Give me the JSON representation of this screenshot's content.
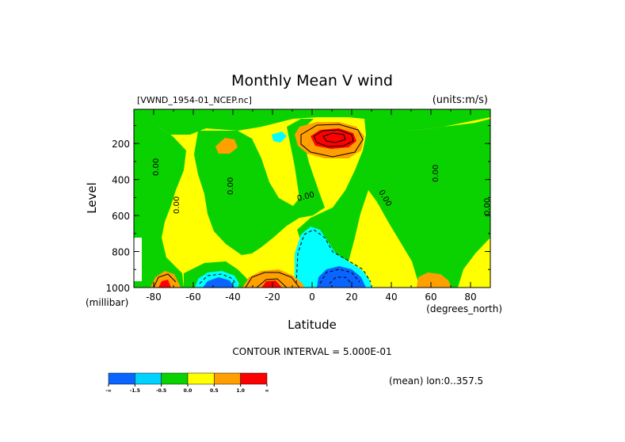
{
  "chart_data": {
    "type": "heatmap",
    "title": "Monthly Mean V wind",
    "dataset_label": "[VWND_1954-01_NCEP.nc]",
    "units_label": "(units:m/s)",
    "xlabel": "Latitude",
    "x_units": "(degrees_north)",
    "ylabel": "Level",
    "y_units": "(millibar)",
    "xlim": [
      -90,
      90
    ],
    "ylim": [
      1000,
      10
    ],
    "x_ticks": [
      -80,
      -60,
      -40,
      -20,
      0,
      20,
      40,
      60,
      80
    ],
    "x_tick_labels": [
      "-80",
      "-60",
      "-40",
      "-20",
      "0",
      "20",
      "40",
      "60",
      "80"
    ],
    "y_ticks": [
      200,
      400,
      600,
      800,
      1000
    ],
    "y_tick_labels": [
      "200",
      "400",
      "600",
      "800",
      "1000"
    ],
    "contour_interval_text": "CONTOUR INTERVAL = 5.000E-01",
    "mean_text": "(mean) lon:0..357.5",
    "zero_contour_label": "0.00",
    "colorbar": {
      "colors": [
        "#0a64ff",
        "#00d2ff",
        "#0ad200",
        "#ffff00",
        "#ffa000",
        "#ff0000"
      ],
      "labels": [
        "-∞",
        "-1.5",
        "-0.5",
        "0.0",
        "0.5",
        "1.0",
        "∞"
      ]
    },
    "features": [
      {
        "lat": -45,
        "lev": 130,
        "value": 0.0,
        "desc": "upper-level green band"
      },
      {
        "lat": -58,
        "lev": 450,
        "value": 0.3
      },
      {
        "lat": -30,
        "lev": 250,
        "value": 0.4
      },
      {
        "lat": -42,
        "lev": 180,
        "value": 0.6
      },
      {
        "lat": 12,
        "lev": 160,
        "value": 1.8,
        "desc": "upper-tropospheric northerly-flow maximum"
      },
      {
        "lat": 8,
        "lev": 230,
        "value": 0.7
      },
      {
        "lat": 20,
        "lev": 420,
        "value": 0.1
      },
      {
        "lat": 45,
        "lev": 350,
        "value": -0.1
      },
      {
        "lat": 75,
        "lev": 200,
        "value": 0.3
      },
      {
        "lat": 5,
        "lev": 820,
        "value": -0.6
      },
      {
        "lat": 12,
        "lev": 960,
        "value": -2.0,
        "desc": "low-level southward flow minimum"
      },
      {
        "lat": -50,
        "lev": 975,
        "value": -1.6
      },
      {
        "lat": -30,
        "lev": 960,
        "value": 0.7
      },
      {
        "lat": -80,
        "lev": 975,
        "value": 0.8
      },
      {
        "lat": 62,
        "lev": 970,
        "value": 0.6
      },
      {
        "lat": 55,
        "lev": 700,
        "value": 0.3
      },
      {
        "lat": 88,
        "lev": 780,
        "value": 0.0
      }
    ]
  }
}
